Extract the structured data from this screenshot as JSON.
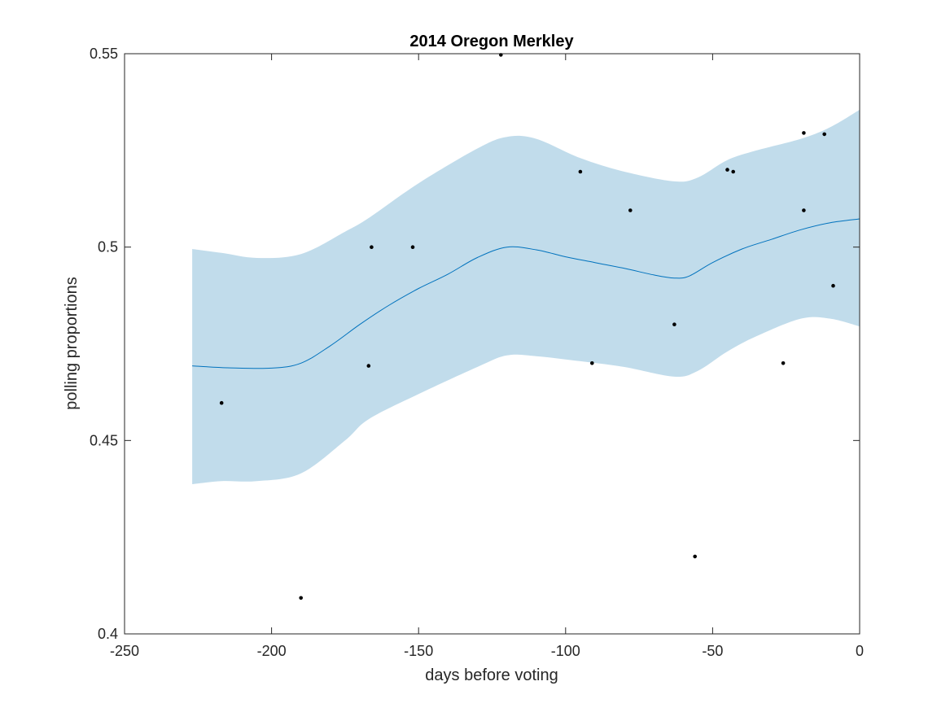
{
  "chart_data": {
    "type": "line",
    "title": "2014 Oregon Merkley",
    "xlabel": "days before voting",
    "ylabel": "polling proportions",
    "xlim": [
      -250,
      0
    ],
    "ylim": [
      0.4,
      0.55
    ],
    "grid": false,
    "x_ticks": [
      {
        "value": -250,
        "label": "-250"
      },
      {
        "value": -200,
        "label": "-200"
      },
      {
        "value": -150,
        "label": "-150"
      },
      {
        "value": -100,
        "label": "-100"
      },
      {
        "value": -50,
        "label": "-50"
      },
      {
        "value": 0,
        "label": "0"
      }
    ],
    "y_ticks": [
      {
        "value": 0.4,
        "label": "0.4"
      },
      {
        "value": 0.45,
        "label": "0.45"
      },
      {
        "value": 0.5,
        "label": "0.5"
      },
      {
        "value": 0.55,
        "label": "0.55"
      }
    ],
    "colors": {
      "band": "#c1dceb",
      "line": "#0072bd",
      "points": "#000000",
      "axes": "#262626"
    },
    "series": [
      {
        "kind": "band",
        "x": [
          -227,
          -217,
          -205,
          -190,
          -175,
          -167,
          -150,
          -130,
          -120,
          -110,
          -95,
          -80,
          -63,
          -55,
          -45,
          -35,
          -20,
          -10,
          0
        ],
        "lower": [
          0.4387,
          0.4395,
          0.4395,
          0.4415,
          0.45,
          0.4555,
          0.462,
          0.469,
          0.472,
          0.4718,
          0.4705,
          0.469,
          0.4665,
          0.468,
          0.473,
          0.477,
          0.4815,
          0.4815,
          0.4795
        ],
        "upper": [
          0.4995,
          0.4985,
          0.4972,
          0.4982,
          0.504,
          0.5075,
          0.5165,
          0.5255,
          0.5285,
          0.528,
          0.523,
          0.5195,
          0.517,
          0.518,
          0.5225,
          0.525,
          0.528,
          0.531,
          0.5355
        ]
      },
      {
        "kind": "line",
        "x": [
          -227,
          -215,
          -200,
          -190,
          -180,
          -170,
          -160,
          -150,
          -140,
          -130,
          -120,
          -110,
          -100,
          -90,
          -80,
          -70,
          -63,
          -58,
          -50,
          -40,
          -30,
          -20,
          -10,
          0
        ],
        "y": [
          0.4693,
          0.4688,
          0.4687,
          0.47,
          0.4745,
          0.48,
          0.485,
          0.4893,
          0.493,
          0.4973,
          0.5,
          0.4993,
          0.4975,
          0.496,
          0.4945,
          0.4928,
          0.492,
          0.4925,
          0.496,
          0.4995,
          0.502,
          0.5045,
          0.5063,
          0.5073
        ]
      },
      {
        "kind": "points",
        "x": [
          -217,
          -190,
          -167,
          -166,
          -152,
          -122,
          -95,
          -91,
          -78,
          -63,
          -56,
          -45,
          -43,
          -26,
          -19,
          -19,
          -12,
          -9
        ],
        "y": [
          0.4597,
          0.4093,
          0.4693,
          0.5,
          0.5,
          0.5497,
          0.5195,
          0.47,
          0.5095,
          0.48,
          0.42,
          0.52,
          0.5195,
          0.47,
          0.5295,
          0.5095,
          0.5292,
          0.49
        ]
      }
    ]
  }
}
